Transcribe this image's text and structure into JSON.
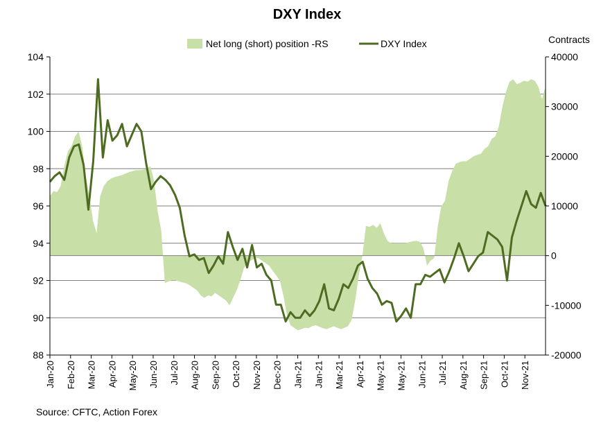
{
  "chart_data": {
    "type": "area+line",
    "title": "DXY Index",
    "source": "Source: CFTC, Action Forex",
    "y_left": {
      "min": 88,
      "max": 104,
      "step": 2,
      "ticks": [
        "88",
        "90",
        "92",
        "94",
        "96",
        "98",
        "100",
        "102",
        "104"
      ]
    },
    "y_right": {
      "label": "Contracts",
      "min": -20000,
      "max": 40000,
      "step": 10000,
      "ticks": [
        "-20000",
        "-10000",
        "0",
        "10000",
        "20000",
        "30000",
        "40000"
      ]
    },
    "x_labels": [
      "Jan-20",
      "Feb-20",
      "Mar-20",
      "Apr-20",
      "May-20",
      "Jun-20",
      "Jul-20",
      "Aug-20",
      "Sep-20",
      "Oct-20",
      "Nov-20",
      "Dec-20",
      "Jan-21",
      "Jan-21",
      "Mar-21",
      "Apr-21",
      "May-21",
      "May-21",
      "Jun-21",
      "Jul-21",
      "Aug-21",
      "Sep-21",
      "Oct-21",
      "Nov-21"
    ],
    "legend": [
      "Net long (short) position -RS",
      "DXY Index"
    ],
    "colors": {
      "area": "#c8dfa8",
      "line": "#4e6b22",
      "axis": "#000000",
      "grid": "#7f7f7f"
    },
    "series": [
      {
        "name": "Net long (short) position -RS",
        "axis": "right",
        "style": "area",
        "values": [
          12000,
          13000,
          12800,
          14000,
          18000,
          21000,
          22000,
          24000,
          25000,
          22000,
          16000,
          12000,
          7000,
          4500,
          12000,
          14000,
          15000,
          15500,
          15800,
          16000,
          16200,
          16500,
          16800,
          17000,
          17200,
          17200,
          17300,
          17500,
          18000,
          15000,
          9000,
          5000,
          -5500,
          -5200,
          -5000,
          -5000,
          -5200,
          -5400,
          -5600,
          -6000,
          -6500,
          -7000,
          -8000,
          -8500,
          -8000,
          -8200,
          -7500,
          -8000,
          -8500,
          -9000,
          -10000,
          -8500,
          -7000,
          -5000,
          -2500,
          -1500,
          -1000,
          -500,
          -500,
          -1000,
          -1500,
          -2000,
          -3000,
          -4000,
          -5000,
          -8000,
          -12000,
          -14000,
          -14500,
          -15000,
          -14800,
          -14500,
          -14600,
          -14200,
          -14000,
          -14300,
          -14600,
          -14800,
          -14500,
          -14200,
          -14500,
          -14800,
          -14500,
          -14200,
          -13000,
          -9000,
          -4000,
          0,
          6000,
          5800,
          6200,
          5600,
          6500,
          4500,
          3000,
          2500,
          2500,
          2500,
          2500,
          2500,
          2700,
          2900,
          3000,
          2800,
          1500,
          -2000,
          -1000,
          -500,
          6000,
          10000,
          11000,
          15000,
          17000,
          18500,
          18800,
          19000,
          19000,
          19500,
          20000,
          20300,
          20500,
          21500,
          22000,
          23500,
          24000,
          26000,
          30000,
          33000,
          35000,
          35500,
          34500,
          34800,
          35200,
          35000,
          35500,
          35200,
          34000,
          31500,
          34000
        ]
      },
      {
        "name": "DXY Index",
        "axis": "left",
        "style": "line",
        "values": [
          97.3,
          97.6,
          97.8,
          97.4,
          98.6,
          99.2,
          99.3,
          98.2,
          95.8,
          98.4,
          102.8,
          98.6,
          100.6,
          99.5,
          99.8,
          100.4,
          99.2,
          99.8,
          100.4,
          100,
          98.3,
          96.9,
          97.3,
          97.6,
          97.4,
          97.1,
          96.6,
          95.9,
          94.4,
          93.3,
          93.4,
          93.1,
          93.2,
          92.4,
          92.8,
          93.3,
          92.9,
          94.6,
          93.8,
          93.1,
          93.7,
          92.7,
          93.9,
          92.7,
          92.9,
          92.3,
          92,
          90.7,
          90.7,
          89.8,
          90.3,
          90,
          90,
          90.4,
          90.1,
          90.4,
          90.9,
          91.8,
          90.5,
          90.4,
          91,
          91.8,
          91.6,
          92.1,
          92.8,
          93,
          92.1,
          91.6,
          91.3,
          90.7,
          90.9,
          90.8,
          89.8,
          90.1,
          90.5,
          90,
          91.8,
          91.8,
          92.3,
          92.2,
          92.4,
          92.6,
          91.9,
          92.5,
          93.2,
          94,
          93.3,
          92.5,
          92.9,
          93.3,
          93.5,
          94.6,
          94.4,
          94.2,
          93.8,
          92,
          94.3,
          95.2,
          96,
          96.8,
          96.1,
          95.9,
          96.7,
          96
        ]
      }
    ]
  }
}
